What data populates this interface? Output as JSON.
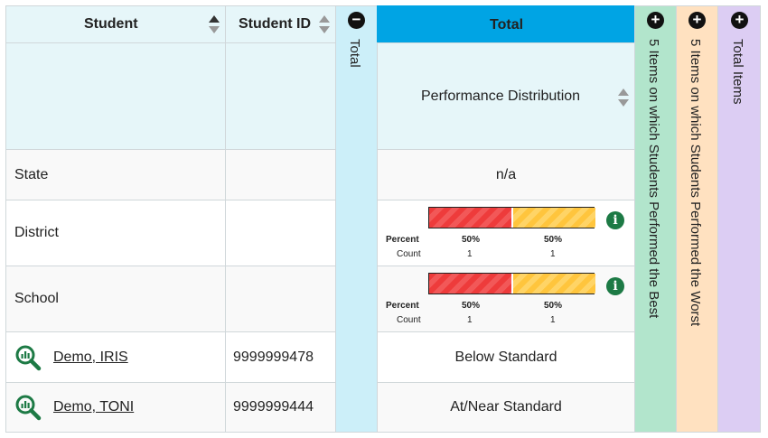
{
  "header": {
    "student": "Student",
    "student_id": "Student ID",
    "total_collapsed": "Total",
    "total": "Total",
    "performance_distribution": "Performance Distribution",
    "best_items": "5 Items on which Students Performed the Best",
    "worst_items": "5 Items on which Students Performed the Worst",
    "total_items": "Total Items",
    "collapse_symbol": "−",
    "expand_symbol": "+"
  },
  "rows": [
    {
      "name": "State",
      "id": "",
      "value": "n/a"
    },
    {
      "name": "District",
      "id": "",
      "distribution": {
        "percent_label": "Percent",
        "count_label": "Count",
        "segments": [
          {
            "percent": "50%",
            "count": "1",
            "fraction": 0.5,
            "color": "#ee3b3b"
          },
          {
            "percent": "50%",
            "count": "1",
            "fraction": 0.5,
            "color": "#ffc53d"
          }
        ]
      }
    },
    {
      "name": "School",
      "id": "",
      "distribution": {
        "percent_label": "Percent",
        "count_label": "Count",
        "segments": [
          {
            "percent": "50%",
            "count": "1",
            "fraction": 0.5,
            "color": "#ee3b3b"
          },
          {
            "percent": "50%",
            "count": "1",
            "fraction": 0.5,
            "color": "#ffc53d"
          }
        ]
      }
    },
    {
      "name": "Demo, IRIS",
      "id": "9999999478",
      "value": "Below Standard",
      "icon": "magnifier-chart-icon"
    },
    {
      "name": "Demo, TONI",
      "id": "9999999444",
      "value": "At/Near Standard",
      "icon": "magnifier-chart-icon"
    }
  ],
  "colors": {
    "header_bg": "#e6f6f9",
    "total_header_bg": "#00a4e4",
    "total_collapsed_bg": "#cceff9",
    "best_col_bg": "#b2e5cc",
    "worst_col_bg": "#ffe1c0",
    "total_items_bg": "#dccdf3",
    "info_green": "#1d7a45"
  },
  "info_symbol": "i"
}
